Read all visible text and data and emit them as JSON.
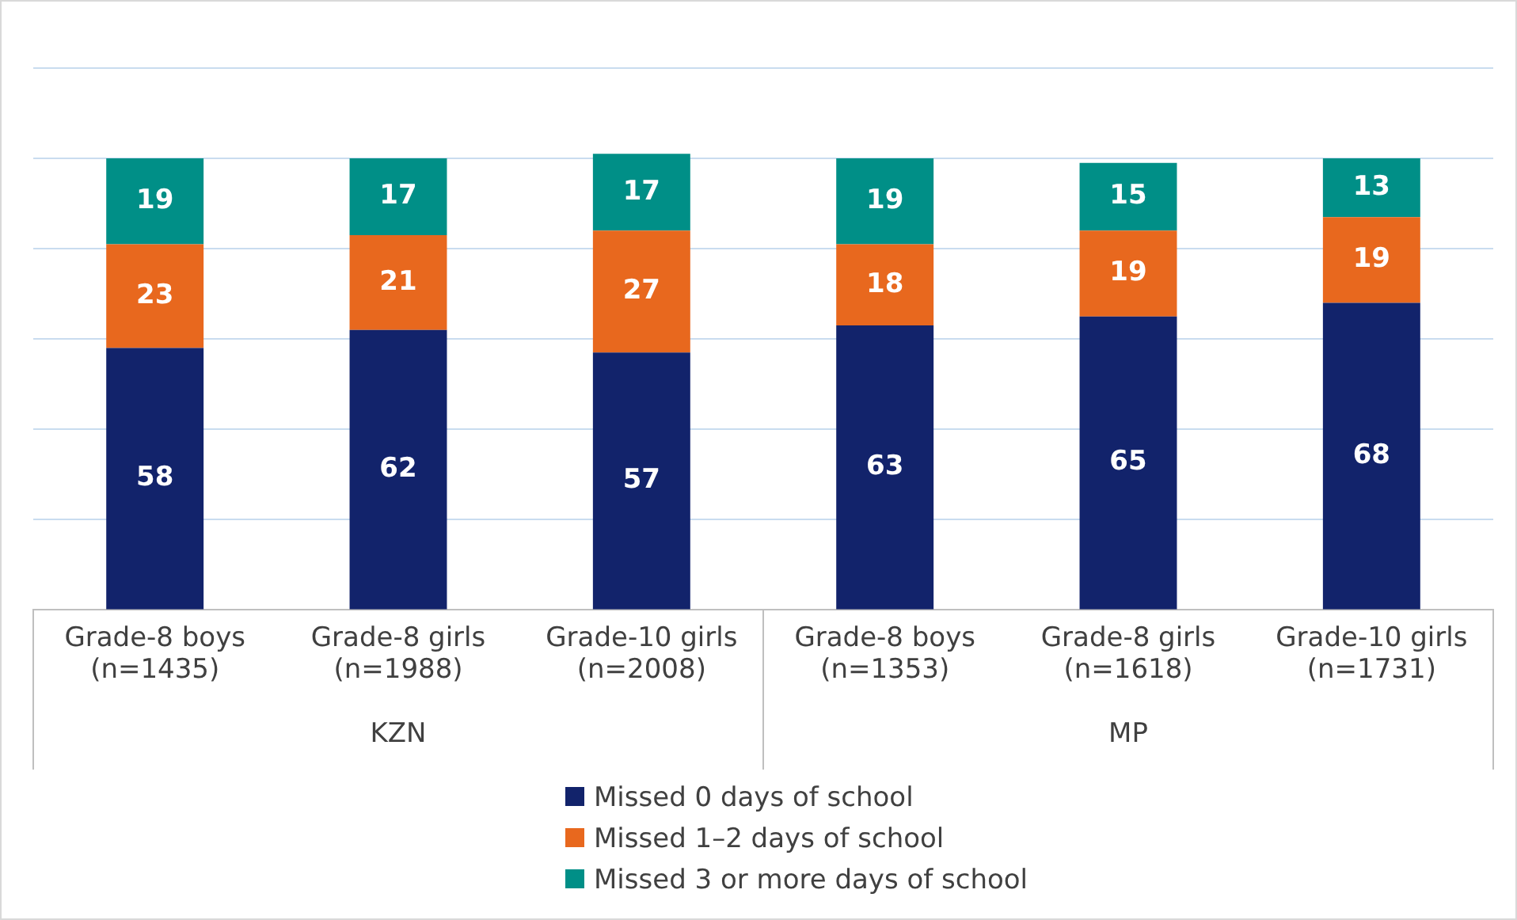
{
  "chart_data": {
    "type": "bar",
    "stacked": true,
    "categories": [
      "Grade-8 boys (n=1435)",
      "Grade-8 girls (n=1988)",
      "Grade-10 girls (n=2008)",
      "Grade-8 boys (n=1353)",
      "Grade-8 girls (n=1618)",
      "Grade-10 girls (n=1731)"
    ],
    "series": [
      {
        "name": "Missed 0 days of school",
        "color": "#12236b",
        "values": [
          58,
          62,
          57,
          63,
          65,
          68
        ]
      },
      {
        "name": "Missed 1–2 days of school",
        "color": "#e8681e",
        "values": [
          23,
          21,
          27,
          18,
          19,
          19
        ]
      },
      {
        "name": "Missed 3 or more days of school",
        "color": "#008f87",
        "values": [
          19,
          17,
          17,
          19,
          15,
          13
        ]
      }
    ],
    "ylim": [
      0,
      120
    ],
    "yticks": [
      {
        "value": 0,
        "label": null
      },
      {
        "value": 20,
        "label": null
      },
      {
        "value": 40,
        "label": null
      },
      {
        "value": 60,
        "label": null
      },
      {
        "value": 80,
        "label": null
      },
      {
        "value": 100,
        "label": null
      },
      {
        "value": 120,
        "label": null
      }
    ],
    "tick_labels": "x",
    "grid": "y",
    "data_labels": true,
    "legend": "bottom",
    "annotations": [
      "KZN",
      "MP"
    ]
  }
}
